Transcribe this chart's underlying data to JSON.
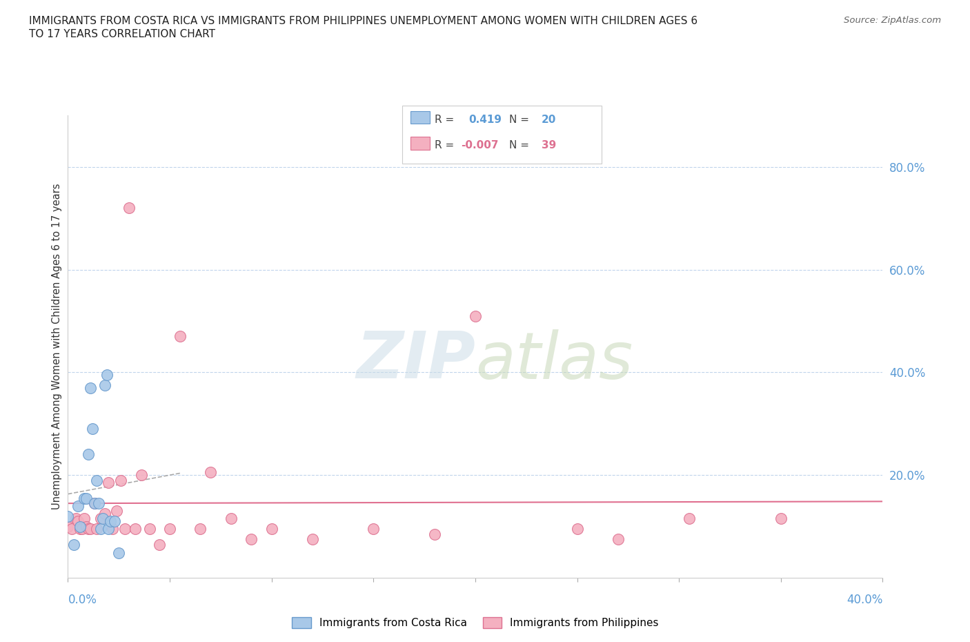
{
  "title_line1": "IMMIGRANTS FROM COSTA RICA VS IMMIGRANTS FROM PHILIPPINES UNEMPLOYMENT AMONG WOMEN WITH CHILDREN AGES 6",
  "title_line2": "TO 17 YEARS CORRELATION CHART",
  "source": "Source: ZipAtlas.com",
  "ylabel": "Unemployment Among Women with Children Ages 6 to 17 years",
  "ytick_labels": [
    "80.0%",
    "60.0%",
    "40.0%",
    "20.0%"
  ],
  "ytick_values": [
    0.8,
    0.6,
    0.4,
    0.2
  ],
  "xlim": [
    0.0,
    0.4
  ],
  "ylim": [
    0.0,
    0.9
  ],
  "costa_rica_R": 0.419,
  "costa_rica_N": 20,
  "philippines_R": -0.007,
  "philippines_N": 39,
  "costa_rica_color": "#a8c8e8",
  "costa_rica_edge": "#6699cc",
  "philippines_color": "#f4b0c0",
  "philippines_edge": "#dd7090",
  "philippines_line_color": "#e07090",
  "regression_line_color": "#aaaaaa",
  "costa_rica_x": [
    0.0,
    0.003,
    0.005,
    0.006,
    0.008,
    0.009,
    0.01,
    0.011,
    0.012,
    0.013,
    0.014,
    0.015,
    0.016,
    0.017,
    0.018,
    0.019,
    0.02,
    0.021,
    0.023,
    0.025
  ],
  "costa_rica_y": [
    0.12,
    0.065,
    0.14,
    0.1,
    0.155,
    0.155,
    0.24,
    0.37,
    0.29,
    0.145,
    0.19,
    0.145,
    0.095,
    0.115,
    0.375,
    0.395,
    0.095,
    0.11,
    0.11,
    0.048
  ],
  "philippines_x": [
    0.0,
    0.002,
    0.004,
    0.005,
    0.006,
    0.007,
    0.008,
    0.009,
    0.01,
    0.011,
    0.013,
    0.014,
    0.016,
    0.018,
    0.02,
    0.022,
    0.024,
    0.026,
    0.028,
    0.03,
    0.033,
    0.036,
    0.04,
    0.045,
    0.05,
    0.055,
    0.065,
    0.07,
    0.08,
    0.09,
    0.1,
    0.12,
    0.15,
    0.18,
    0.2,
    0.25,
    0.27,
    0.305,
    0.35
  ],
  "philippines_y": [
    0.1,
    0.095,
    0.115,
    0.11,
    0.095,
    0.095,
    0.115,
    0.1,
    0.095,
    0.095,
    0.145,
    0.095,
    0.115,
    0.125,
    0.185,
    0.095,
    0.13,
    0.19,
    0.095,
    0.72,
    0.095,
    0.2,
    0.095,
    0.065,
    0.095,
    0.47,
    0.095,
    0.205,
    0.115,
    0.075,
    0.095,
    0.075,
    0.095,
    0.085,
    0.51,
    0.095,
    0.075,
    0.115,
    0.115
  ],
  "legend_label_cr": "Immigrants from Costa Rica",
  "legend_label_ph": "Immigrants from Philippines"
}
